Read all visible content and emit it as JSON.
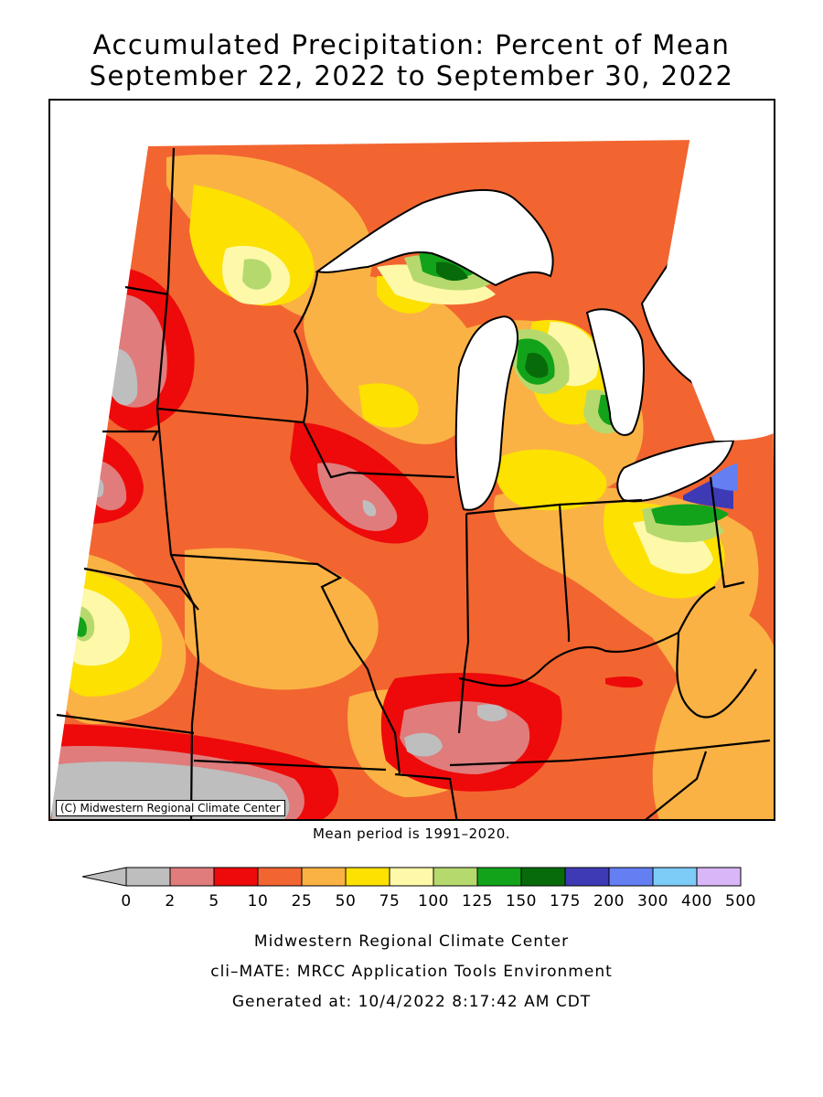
{
  "title": {
    "line1": "Accumulated Precipitation: Percent of Mean",
    "line2": "September 22, 2022 to September 30, 2022"
  },
  "map": {
    "copyright": "(C) Midwestern Regional Climate Center"
  },
  "mean_note": "Mean period is 1991–2020.",
  "legend": {
    "underflow_color": "#bebebe",
    "bins": [
      {
        "color": "#bebebe"
      },
      {
        "color": "#e07c7c"
      },
      {
        "color": "#ee0a0a"
      },
      {
        "color": "#f26530"
      },
      {
        "color": "#fbb244"
      },
      {
        "color": "#fde100"
      },
      {
        "color": "#fdf9a8"
      },
      {
        "color": "#b6d96e"
      },
      {
        "color": "#12a31a"
      },
      {
        "color": "#086b0a"
      },
      {
        "color": "#3e3ab5"
      },
      {
        "color": "#637ff2"
      },
      {
        "color": "#7dcbf7"
      },
      {
        "color": "#d9b6f7"
      }
    ],
    "tick_labels": [
      "0",
      "2",
      "5",
      "10",
      "25",
      "50",
      "75",
      "100",
      "125",
      "150",
      "175",
      "200",
      "300",
      "400",
      "500"
    ]
  },
  "footer": {
    "line1": "Midwestern Regional Climate Center",
    "line2": "cli–MATE: MRCC Application Tools Environment",
    "line3": "Generated at: 10/4/2022 8:17:42 AM CDT"
  }
}
